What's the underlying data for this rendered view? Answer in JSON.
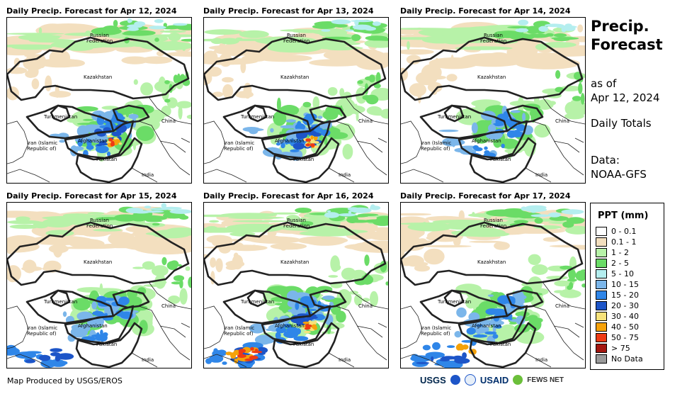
{
  "panels": [
    {
      "title": "Daily Precip. Forecast for Apr 12, 2024",
      "intensity": "high"
    },
    {
      "title": "Daily Precip. Forecast for Apr 13, 2024",
      "intensity": "high"
    },
    {
      "title": "Daily Precip. Forecast for Apr 14, 2024",
      "intensity": "moderate"
    },
    {
      "title": "Daily Precip. Forecast for Apr 15, 2024",
      "intensity": "moderate"
    },
    {
      "title": "Daily Precip. Forecast for Apr 16, 2024",
      "intensity": "high"
    },
    {
      "title": "Daily Precip. Forecast for Apr 17, 2024",
      "intensity": "moderate"
    }
  ],
  "map_labels": {
    "russia_line1": "Russian",
    "russia_line2": "Federation",
    "kazakhstan": "Kazakhstan",
    "turkmenistan": "Turkmenistan",
    "china": "China",
    "iran_line1": "Iran  (Islamic",
    "iran_line2": "Republic of)",
    "afghanistan": "Afghanistan",
    "pakistan": "Pakistan",
    "india": "India"
  },
  "side": {
    "title_line1": "Precip.",
    "title_line2": "Forecast",
    "asof_line1": "as of",
    "asof_line2": "Apr 12, 2024",
    "totals": "Daily Totals",
    "data_line1": "Data:",
    "data_line2": "NOAA-GFS"
  },
  "legend": {
    "title": "PPT (mm)",
    "items": [
      {
        "label": "0 - 0.1",
        "color": "#ffffff"
      },
      {
        "label": "0.1 - 1",
        "color": "#f3dfbf"
      },
      {
        "label": "1 - 2",
        "color": "#b7f2a8"
      },
      {
        "label": "2 - 5",
        "color": "#6bdc67"
      },
      {
        "label": "5 - 10",
        "color": "#b4eeef"
      },
      {
        "label": "10 - 15",
        "color": "#7bb6ea"
      },
      {
        "label": "15 - 20",
        "color": "#2f86e8"
      },
      {
        "label": "20 - 30",
        "color": "#1d55c8"
      },
      {
        "label": "30 - 40",
        "color": "#f7e27a"
      },
      {
        "label": "40 - 50",
        "color": "#f5a20a"
      },
      {
        "label": "50 - 75",
        "color": "#ee3a14"
      },
      {
        "label": "> 75",
        "color": "#a3160f"
      },
      {
        "label": "No Data",
        "color": "#9a9a9a"
      }
    ]
  },
  "footer": "Map Produced by USGS/EROS",
  "logos": {
    "usgs": "USGS",
    "usaid": "USAID",
    "fews": "FEWS NET"
  }
}
